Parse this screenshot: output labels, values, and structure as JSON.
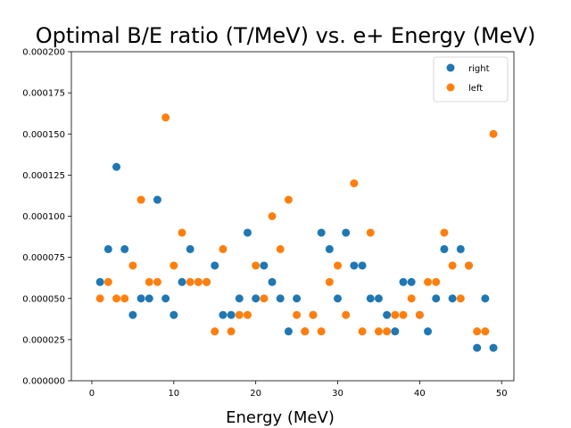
{
  "chart_data": {
    "type": "scatter",
    "title": "Optimal B/E ratio (T/MeV) vs. e+ Energy (MeV)",
    "xlabel": "Energy (MeV)",
    "ylabel": "",
    "xlim": [
      -2.5,
      51.5
    ],
    "ylim": [
      0,
      0.0002
    ],
    "xticks": [
      0,
      10,
      20,
      30,
      40,
      50
    ],
    "xtick_labels": [
      "0",
      "10",
      "20",
      "30",
      "40",
      "50"
    ],
    "yticks": [
      0,
      2.5e-05,
      5e-05,
      7.5e-05,
      0.0001,
      0.000125,
      0.00015,
      0.000175,
      0.0002
    ],
    "ytick_labels": [
      "0.000000",
      "0.000025",
      "0.000050",
      "0.000075",
      "0.000100",
      "0.000125",
      "0.000150",
      "0.000175",
      "0.000200"
    ],
    "grid": false,
    "legend_position": "top-right",
    "series": [
      {
        "name": "right",
        "color": "#1f77b4",
        "points": [
          [
            1,
            6e-05
          ],
          [
            2,
            8e-05
          ],
          [
            3,
            0.00013
          ],
          [
            4,
            8e-05
          ],
          [
            5,
            4e-05
          ],
          [
            6,
            5e-05
          ],
          [
            7,
            5e-05
          ],
          [
            8,
            0.00011
          ],
          [
            9,
            5e-05
          ],
          [
            10,
            4e-05
          ],
          [
            11,
            6e-05
          ],
          [
            12,
            8e-05
          ],
          [
            13,
            6e-05
          ],
          [
            14,
            6e-05
          ],
          [
            15,
            7e-05
          ],
          [
            16,
            4e-05
          ],
          [
            17,
            4e-05
          ],
          [
            18,
            5e-05
          ],
          [
            19,
            9e-05
          ],
          [
            20,
            5e-05
          ],
          [
            21,
            7e-05
          ],
          [
            22,
            6e-05
          ],
          [
            23,
            5e-05
          ],
          [
            24,
            3e-05
          ],
          [
            25,
            5e-05
          ],
          [
            26,
            3e-05
          ],
          [
            27,
            4e-05
          ],
          [
            28,
            9e-05
          ],
          [
            29,
            8e-05
          ],
          [
            30,
            5e-05
          ],
          [
            31,
            9e-05
          ],
          [
            32,
            7e-05
          ],
          [
            33,
            7e-05
          ],
          [
            34,
            5e-05
          ],
          [
            35,
            5e-05
          ],
          [
            36,
            4e-05
          ],
          [
            37,
            3e-05
          ],
          [
            38,
            6e-05
          ],
          [
            39,
            6e-05
          ],
          [
            40,
            4e-05
          ],
          [
            41,
            3e-05
          ],
          [
            42,
            5e-05
          ],
          [
            43,
            8e-05
          ],
          [
            44,
            5e-05
          ],
          [
            45,
            8e-05
          ],
          [
            46,
            7e-05
          ],
          [
            47,
            2e-05
          ],
          [
            48,
            5e-05
          ],
          [
            49,
            2e-05
          ]
        ]
      },
      {
        "name": "left",
        "color": "#ff7f0e",
        "points": [
          [
            1,
            5e-05
          ],
          [
            2,
            6e-05
          ],
          [
            3,
            5e-05
          ],
          [
            4,
            5e-05
          ],
          [
            5,
            7e-05
          ],
          [
            6,
            0.00011
          ],
          [
            7,
            6e-05
          ],
          [
            8,
            6e-05
          ],
          [
            9,
            0.00016
          ],
          [
            10,
            7e-05
          ],
          [
            11,
            9e-05
          ],
          [
            12,
            6e-05
          ],
          [
            13,
            6e-05
          ],
          [
            14,
            6e-05
          ],
          [
            15,
            3e-05
          ],
          [
            16,
            8e-05
          ],
          [
            17,
            3e-05
          ],
          [
            18,
            4e-05
          ],
          [
            19,
            4e-05
          ],
          [
            20,
            7e-05
          ],
          [
            21,
            5e-05
          ],
          [
            22,
            0.0001
          ],
          [
            23,
            8e-05
          ],
          [
            24,
            0.00011
          ],
          [
            25,
            4e-05
          ],
          [
            26,
            3e-05
          ],
          [
            27,
            4e-05
          ],
          [
            28,
            3e-05
          ],
          [
            29,
            6e-05
          ],
          [
            30,
            7e-05
          ],
          [
            31,
            4e-05
          ],
          [
            32,
            0.00012
          ],
          [
            33,
            3e-05
          ],
          [
            34,
            9e-05
          ],
          [
            35,
            3e-05
          ],
          [
            36,
            3e-05
          ],
          [
            37,
            4e-05
          ],
          [
            38,
            4e-05
          ],
          [
            39,
            5e-05
          ],
          [
            40,
            4e-05
          ],
          [
            41,
            6e-05
          ],
          [
            42,
            6e-05
          ],
          [
            43,
            9e-05
          ],
          [
            44,
            7e-05
          ],
          [
            45,
            5e-05
          ],
          [
            46,
            7e-05
          ],
          [
            47,
            3e-05
          ],
          [
            48,
            3e-05
          ],
          [
            49,
            0.00015
          ]
        ]
      }
    ]
  }
}
